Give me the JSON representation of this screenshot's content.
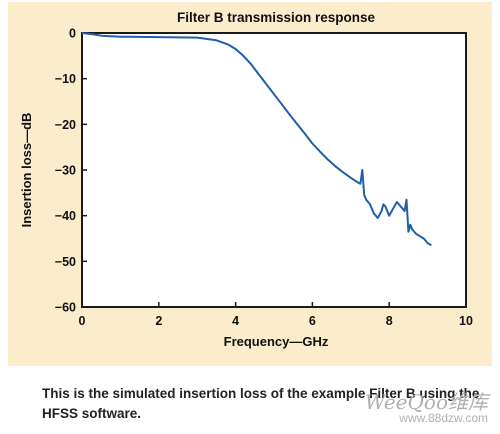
{
  "chart_data": {
    "type": "line",
    "title": "Filter B transmission response",
    "xlabel": "Frequency—GHz",
    "ylabel": "Insertion loss—dB",
    "xlim": [
      0,
      10
    ],
    "ylim": [
      -60,
      0
    ],
    "xticks": [
      "0",
      "2",
      "4",
      "6",
      "8",
      "10"
    ],
    "yticks": [
      "0",
      "−10",
      "−20",
      "−30",
      "−40",
      "−50",
      "−60"
    ],
    "grid": false,
    "legend": "none",
    "series": [
      {
        "color": "#1f5fa8",
        "x": [
          0,
          0.3,
          0.5,
          1.0,
          2.0,
          3.0,
          3.5,
          3.8,
          4.0,
          4.2,
          4.4,
          4.6,
          4.8,
          5.0,
          5.2,
          5.4,
          5.6,
          5.8,
          6.0,
          6.2,
          6.4,
          6.6,
          6.8,
          7.0,
          7.2,
          7.25,
          7.3,
          7.35,
          7.4,
          7.5,
          7.6,
          7.7,
          7.8,
          7.85,
          7.9,
          8.0,
          8.1,
          8.2,
          8.3,
          8.4,
          8.45,
          8.5,
          8.55,
          8.6,
          8.7,
          8.8,
          8.9,
          9.0,
          9.1
        ],
        "y": [
          0,
          -0.3,
          -0.6,
          -0.8,
          -0.9,
          -1.0,
          -1.6,
          -2.5,
          -3.5,
          -5.0,
          -6.8,
          -9.0,
          -11.2,
          -13.4,
          -15.6,
          -17.8,
          -19.9,
          -22.0,
          -24.2,
          -26.0,
          -27.7,
          -29.2,
          -30.5,
          -31.7,
          -32.8,
          -33.0,
          -30.0,
          -35.5,
          -36.5,
          -37.5,
          -39.5,
          -40.5,
          -39.0,
          -37.5,
          -38.0,
          -40.0,
          -38.5,
          -37.0,
          -38.0,
          -39.0,
          -36.5,
          -43.5,
          -42.0,
          -43.0,
          -44.0,
          -44.5,
          -45.0,
          -46.0,
          -46.5
        ]
      }
    ]
  },
  "caption": "This is the simulated insertion loss of the example Filter B using the HFSS software.",
  "watermark": {
    "brand": "WeeQoo维库",
    "url": "www.88dzw.com"
  },
  "colors": {
    "panel_background": "#fbeccc",
    "plot_background": "#ffffff",
    "line": "#1f5fa8"
  }
}
